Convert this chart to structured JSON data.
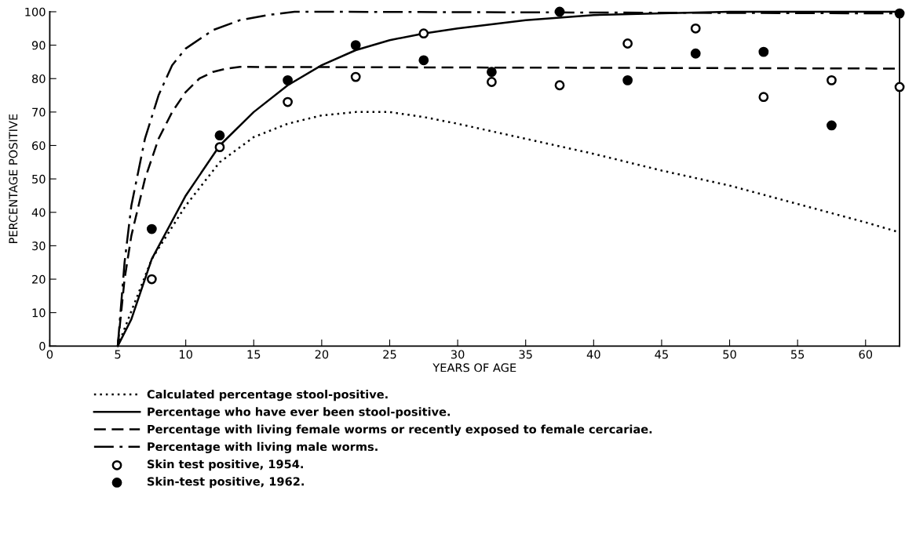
{
  "chart_data": {
    "type": "line",
    "xlabel": "YEARS OF AGE",
    "ylabel": "PERCENTAGE POSITIVE",
    "xlim": [
      0,
      62.5
    ],
    "ylim": [
      0,
      100
    ],
    "xticks": [
      0,
      5,
      10,
      15,
      20,
      25,
      30,
      35,
      40,
      45,
      50,
      55,
      60
    ],
    "yticks": [
      0,
      10,
      20,
      30,
      40,
      50,
      60,
      70,
      80,
      90,
      100
    ],
    "grid": false,
    "legend": "bottom",
    "series": [
      {
        "name": "Calculated percentage stool-positive.",
        "color": "#000000",
        "line_style": "dotted",
        "marker": "none",
        "x": [
          5,
          7.5,
          10,
          12.5,
          15,
          17.5,
          20,
          22.5,
          25,
          27.5,
          30,
          35,
          40,
          45,
          50,
          55,
          60,
          62.5
        ],
        "values": [
          0,
          26,
          42,
          55,
          62.5,
          66.5,
          69,
          70,
          70,
          68.5,
          66.5,
          62,
          57.5,
          52.5,
          48,
          42.5,
          37,
          34
        ]
      },
      {
        "name": "Percentage who have ever been stool-positive.",
        "color": "#000000",
        "line_style": "solid",
        "marker": "none",
        "x": [
          5,
          6,
          7.5,
          10,
          12.5,
          15,
          17.5,
          20,
          22.5,
          25,
          27.5,
          30,
          35,
          40,
          45,
          50,
          62.5
        ],
        "values": [
          0,
          8,
          26,
          45,
          60,
          70,
          78,
          84,
          88.5,
          91.5,
          93.5,
          95,
          97.5,
          99,
          99.5,
          100,
          100
        ]
      },
      {
        "name": "Percentage with living female worms or recently exposed to female cercariae.",
        "color": "#000000",
        "line_style": "dashed",
        "marker": "none",
        "x": [
          5,
          5.5,
          6,
          7,
          8,
          9,
          10,
          11,
          12,
          13,
          14,
          62.5
        ],
        "values": [
          0,
          20,
          33,
          50,
          62,
          70,
          76,
          80,
          82,
          83,
          83.5,
          83
        ]
      },
      {
        "name": "Percentage with living male worms.",
        "color": "#000000",
        "line_style": "dashdot",
        "marker": "none",
        "x": [
          5,
          5.5,
          6,
          7,
          8,
          9,
          10,
          12,
          14,
          16,
          18,
          20,
          62.5
        ],
        "values": [
          0,
          25,
          42,
          62,
          75,
          84,
          89,
          94.5,
          97.5,
          99,
          100,
          100,
          99.5
        ]
      },
      {
        "name": "Skin test positive, 1954.",
        "type": "scatter",
        "color": "#ffffff",
        "marker": "circle",
        "x": [
          7.5,
          12.5,
          17.5,
          22.5,
          27.5,
          32.5,
          37.5,
          42.5,
          47.5,
          52.5,
          57.5,
          62.5
        ],
        "values": [
          20,
          59.5,
          73,
          80.5,
          93.5,
          79,
          78,
          90.5,
          95,
          74.5,
          79.5,
          77.5
        ]
      },
      {
        "name": "Skin-test positive, 1962.",
        "type": "scatter",
        "color": "#000000",
        "marker": "circle",
        "x": [
          7.5,
          12.5,
          17.5,
          22.5,
          27.5,
          32.5,
          37.5,
          42.5,
          47.5,
          52.5,
          57.5,
          62.5
        ],
        "values": [
          35,
          63,
          79.5,
          90,
          85.5,
          82,
          100,
          79.5,
          87.5,
          88,
          66,
          99.5
        ]
      }
    ]
  }
}
